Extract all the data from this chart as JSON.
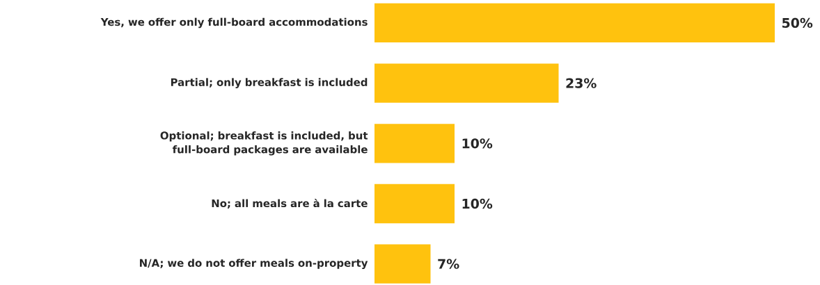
{
  "chart_data": {
    "type": "bar",
    "orientation": "horizontal",
    "categories": [
      "Yes, we offer only full-board accommodations",
      "Partial; only breakfast is included",
      "Optional; breakfast is included, but full-board packages are available",
      "No; all meals are à la carte",
      "N/A; we do not offer meals on-property"
    ],
    "values": [
      50,
      23,
      10,
      10,
      7
    ],
    "value_labels": [
      "50%",
      "23%",
      "10%",
      "10%",
      "7%"
    ],
    "color": "#ffc20e"
  }
}
